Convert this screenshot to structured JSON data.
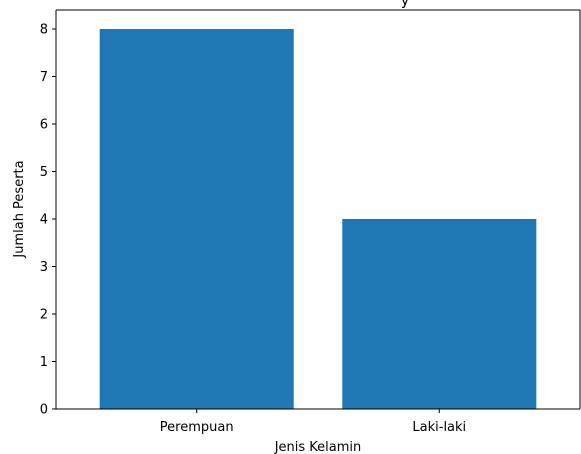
{
  "chart_data": {
    "type": "bar",
    "title": "",
    "title_visible_fragment": "y",
    "categories": [
      "Perempuan",
      "Laki-laki"
    ],
    "values": [
      8,
      4
    ],
    "xlabel": "Jenis Kelamin",
    "ylabel": "Jumlah Peserta",
    "ylim": [
      0,
      8.4
    ],
    "yticks": [
      "0",
      "1",
      "2",
      "3",
      "4",
      "5",
      "6",
      "7",
      "8"
    ],
    "grid": false,
    "legend": "none",
    "bar_color": "#1f77b4"
  }
}
